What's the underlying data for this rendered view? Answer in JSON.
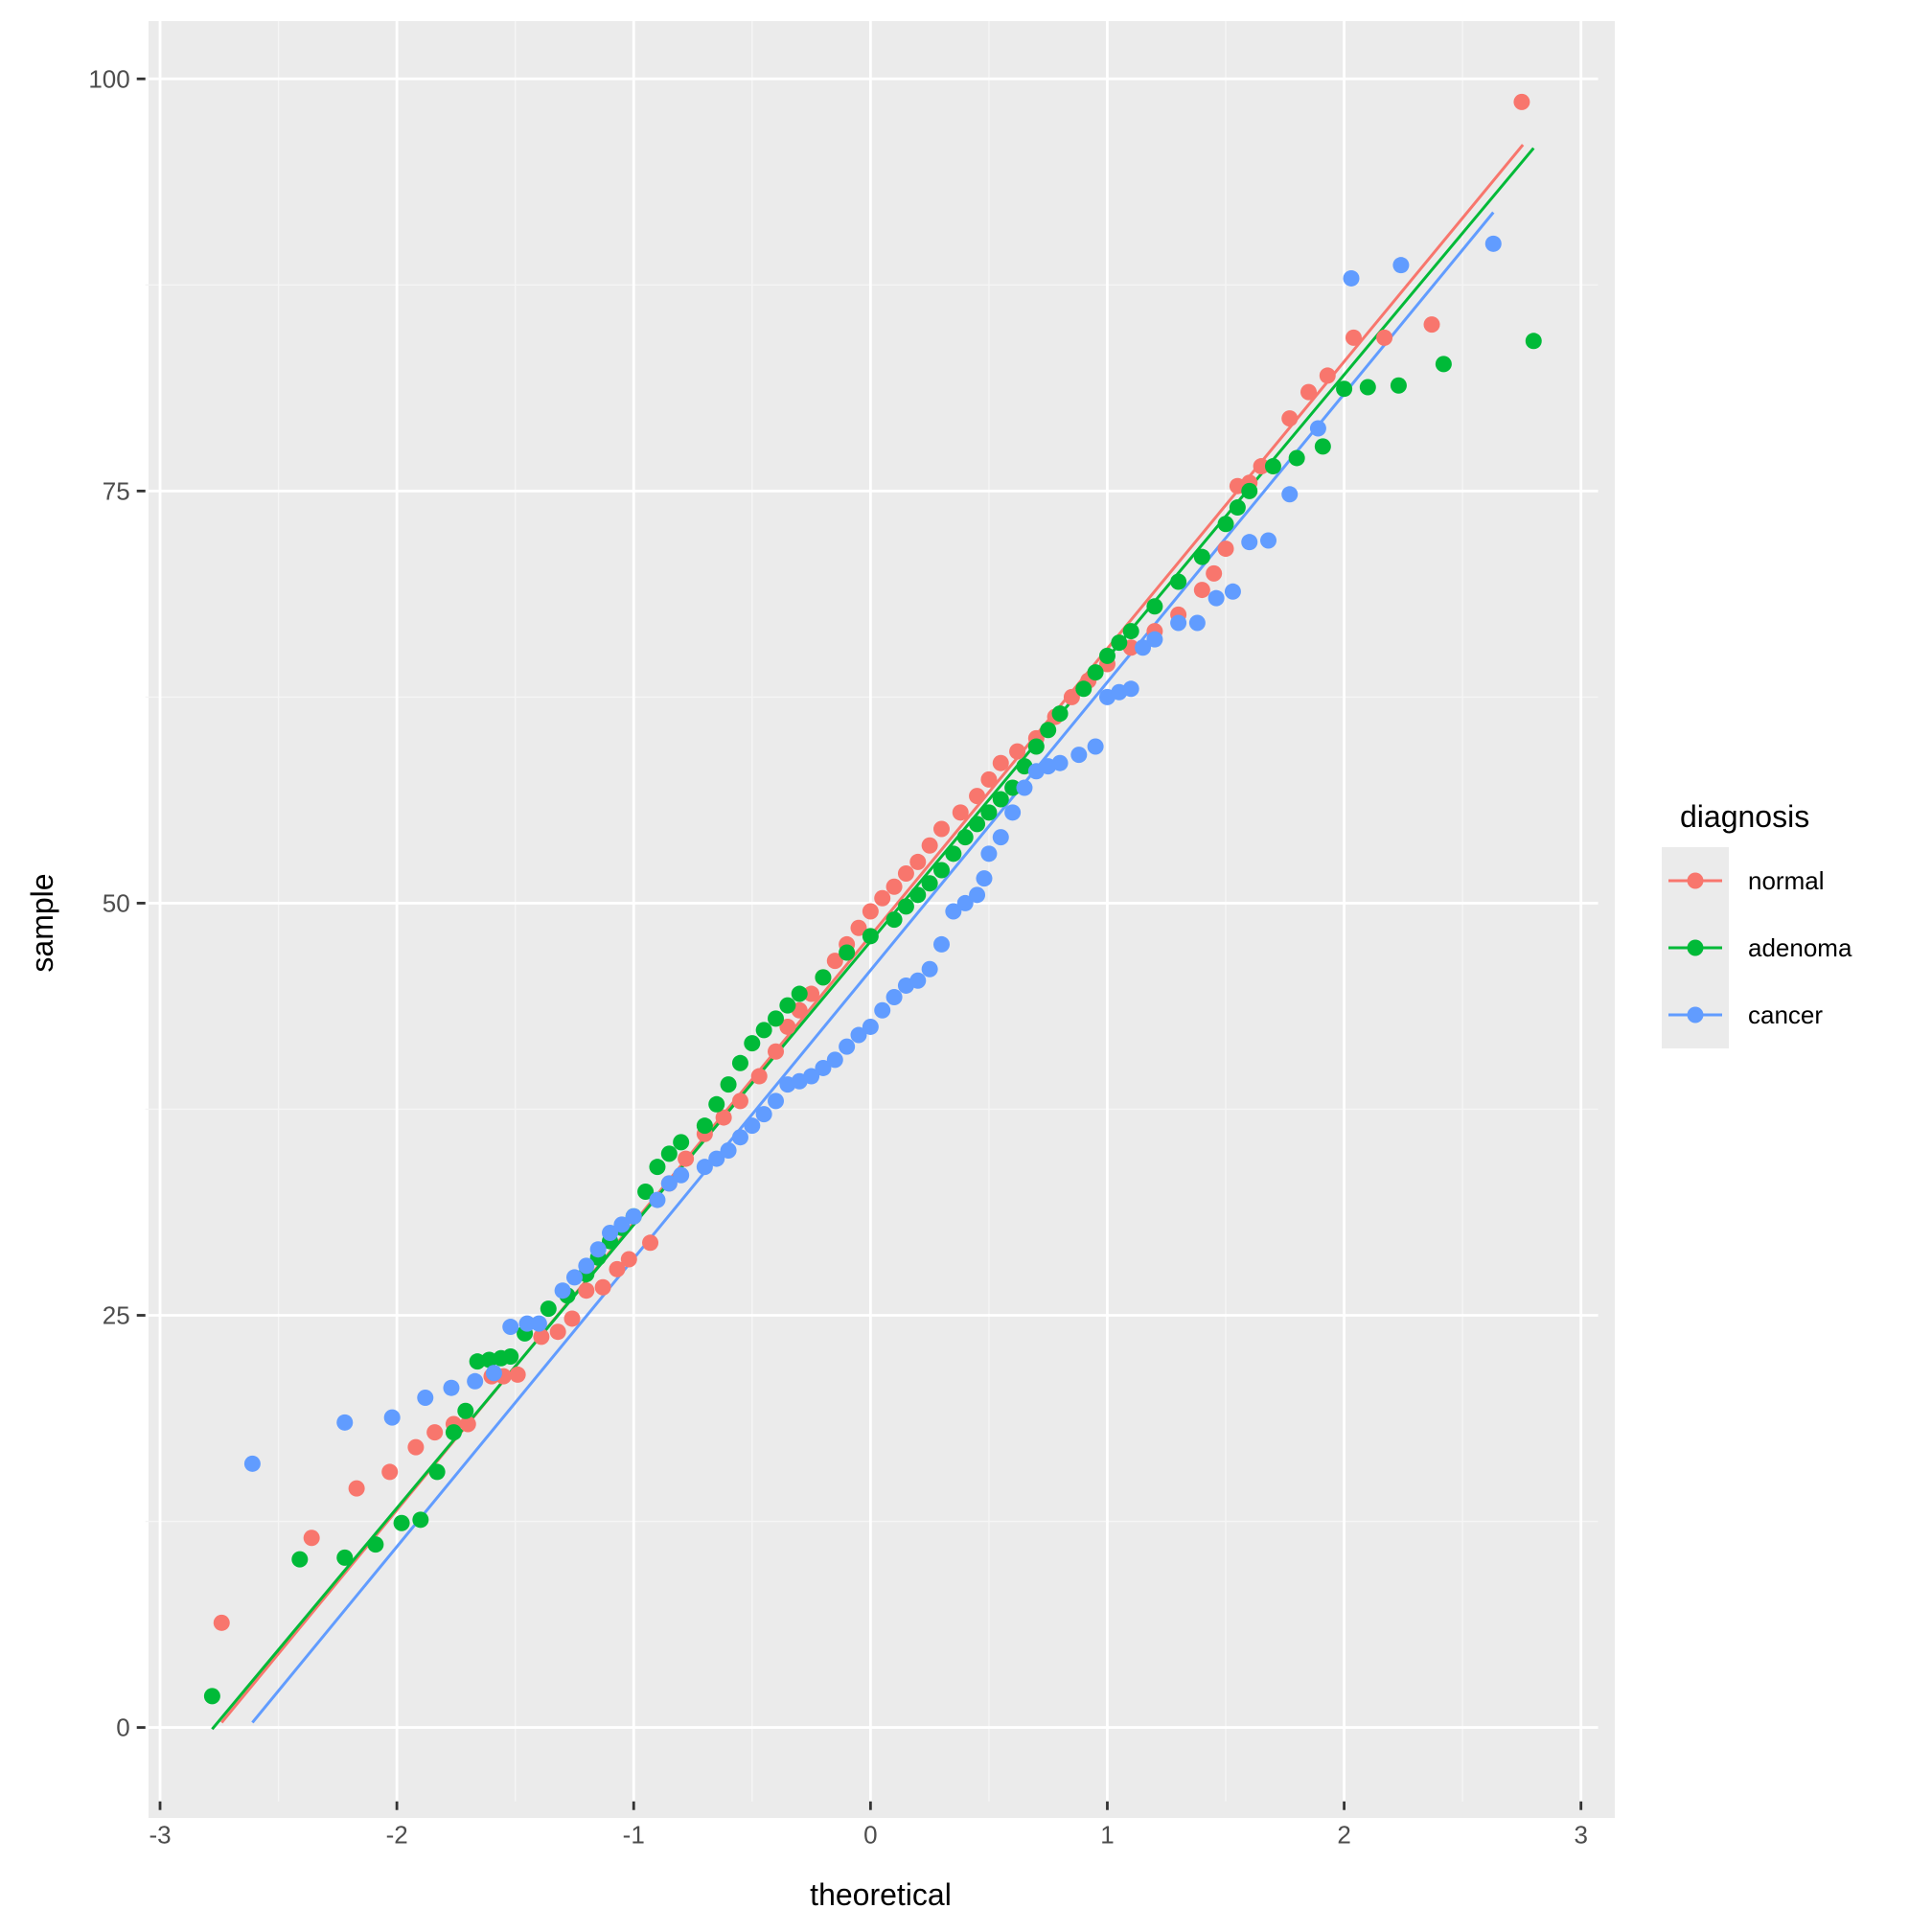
{
  "chart_data": {
    "type": "scatter",
    "subtype": "qq-plot with reference lines",
    "xlabel": "theoretical",
    "ylabel": "sample",
    "xlim": [
      -3.05,
      3.05
    ],
    "ylim": [
      -4.5,
      103.5
    ],
    "x_ticks": [
      -3,
      -2,
      -1,
      0,
      1,
      2,
      3
    ],
    "y_ticks": [
      0,
      25,
      50,
      75,
      100
    ],
    "grid": true,
    "background": "#EBEBEB",
    "legend": {
      "title": "diagnosis",
      "position": "right"
    },
    "series": [
      {
        "name": "normal",
        "color": "#F8766D",
        "line": [
          [
            -2.74,
            0.3
          ],
          [
            2.755,
            96
          ]
        ],
        "points": [
          [
            -2.74,
            6.35
          ],
          [
            -2.36,
            11.5
          ],
          [
            -2.17,
            14.5
          ],
          [
            -2.03,
            15.5
          ],
          [
            -1.92,
            17.0
          ],
          [
            -1.84,
            17.9
          ],
          [
            -1.76,
            18.4
          ],
          [
            -1.7,
            18.4
          ],
          [
            -1.6,
            21.3
          ],
          [
            -1.55,
            21.3
          ],
          [
            -1.49,
            21.4
          ],
          [
            -1.39,
            23.7
          ],
          [
            -1.32,
            24.0
          ],
          [
            -1.26,
            24.8
          ],
          [
            -1.2,
            26.5
          ],
          [
            -1.13,
            26.7
          ],
          [
            -1.07,
            27.8
          ],
          [
            -1.02,
            28.4
          ],
          [
            -0.93,
            29.4
          ],
          [
            -0.85,
            33
          ],
          [
            -0.78,
            34.5
          ],
          [
            -0.7,
            36
          ],
          [
            -0.62,
            37
          ],
          [
            -0.55,
            38
          ],
          [
            -0.47,
            39.5
          ],
          [
            -0.4,
            41
          ],
          [
            -0.35,
            42.5
          ],
          [
            -0.3,
            43.5
          ],
          [
            -0.25,
            44.5
          ],
          [
            -0.2,
            45.5
          ],
          [
            -0.15,
            46.5
          ],
          [
            -0.1,
            47.5
          ],
          [
            -0.05,
            48.5
          ],
          [
            0,
            49.5
          ],
          [
            0.05,
            50.3
          ],
          [
            0.1,
            51
          ],
          [
            0.15,
            51.8
          ],
          [
            0.2,
            52.5
          ],
          [
            0.25,
            53.5
          ],
          [
            0.3,
            54.5
          ],
          [
            0.38,
            55.5
          ],
          [
            0.45,
            56.5
          ],
          [
            0.5,
            57.5
          ],
          [
            0.55,
            58.5
          ],
          [
            0.62,
            59.2
          ],
          [
            0.7,
            60
          ],
          [
            0.78,
            61.3
          ],
          [
            0.85,
            62.5
          ],
          [
            0.92,
            63.5
          ],
          [
            1,
            64.5
          ],
          [
            1.1,
            65.5
          ],
          [
            1.2,
            66.5
          ],
          [
            1.3,
            67.5
          ],
          [
            1.4,
            69
          ],
          [
            1.45,
            70
          ],
          [
            1.5,
            71.5
          ],
          [
            1.55,
            75.3
          ],
          [
            1.6,
            75.5
          ],
          [
            1.65,
            76.5
          ],
          [
            1.77,
            79.4
          ],
          [
            1.85,
            81
          ],
          [
            1.93,
            82
          ],
          [
            2.04,
            84.3
          ],
          [
            2.17,
            84.3
          ],
          [
            2.37,
            85.1
          ],
          [
            2.75,
            98.6
          ]
        ]
      },
      {
        "name": "adenoma",
        "color": "#00BA38",
        "line": [
          [
            -2.78,
            -0.1
          ],
          [
            2.8,
            95.8
          ]
        ],
        "points": [
          [
            -2.78,
            1.9
          ],
          [
            -2.41,
            10.2
          ],
          [
            -2.22,
            10.3
          ],
          [
            -2.09,
            11.1
          ],
          [
            -1.98,
            12.4
          ],
          [
            -1.9,
            12.6
          ],
          [
            -1.83,
            15.5
          ],
          [
            -1.76,
            17.9
          ],
          [
            -1.71,
            19.2
          ],
          [
            -1.66,
            22.2
          ],
          [
            -1.61,
            22.3
          ],
          [
            -1.56,
            22.4
          ],
          [
            -1.52,
            22.5
          ],
          [
            -1.46,
            23.9
          ],
          [
            -1.36,
            25.4
          ],
          [
            -1.28,
            26.2
          ],
          [
            -1.2,
            27.5
          ],
          [
            -1.15,
            28.5
          ],
          [
            -1.1,
            29.5
          ],
          [
            -1.05,
            30.3
          ],
          [
            -1.0,
            31
          ],
          [
            -0.95,
            32.5
          ],
          [
            -0.9,
            34
          ],
          [
            -0.85,
            34.8
          ],
          [
            -0.8,
            35.5
          ],
          [
            -0.7,
            36.5
          ],
          [
            -0.65,
            37.8
          ],
          [
            -0.6,
            39
          ],
          [
            -0.55,
            40.3
          ],
          [
            -0.5,
            41.5
          ],
          [
            -0.45,
            42.3
          ],
          [
            -0.4,
            43
          ],
          [
            -0.35,
            43.8
          ],
          [
            -0.3,
            44.5
          ],
          [
            -0.2,
            45.5
          ],
          [
            -0.1,
            47
          ],
          [
            0,
            48
          ],
          [
            0.1,
            49
          ],
          [
            0.15,
            49.8
          ],
          [
            0.2,
            50.5
          ],
          [
            0.25,
            51.2
          ],
          [
            0.3,
            52
          ],
          [
            0.35,
            53
          ],
          [
            0.4,
            54
          ],
          [
            0.45,
            54.8
          ],
          [
            0.5,
            55.5
          ],
          [
            0.55,
            56.3
          ],
          [
            0.6,
            57
          ],
          [
            0.65,
            58.3
          ],
          [
            0.7,
            59.5
          ],
          [
            0.75,
            60.5
          ],
          [
            0.8,
            61.5
          ],
          [
            0.9,
            63
          ],
          [
            0.95,
            64
          ],
          [
            1,
            65
          ],
          [
            1.05,
            65.8
          ],
          [
            1.1,
            66.5
          ],
          [
            1.2,
            68
          ],
          [
            1.3,
            69.5
          ],
          [
            1.4,
            71
          ],
          [
            1.5,
            73
          ],
          [
            1.55,
            74
          ],
          [
            1.6,
            75
          ],
          [
            1.7,
            76.5
          ],
          [
            1.8,
            77
          ],
          [
            1.91,
            77.7
          ],
          [
            2.0,
            81.2
          ],
          [
            2.1,
            81.3
          ],
          [
            2.23,
            81.4
          ],
          [
            2.42,
            82.7
          ],
          [
            2.8,
            84.1
          ]
        ]
      },
      {
        "name": "cancer",
        "color": "#619CFF",
        "line": [
          [
            -2.61,
            0.3
          ],
          [
            2.63,
            91.9
          ]
        ],
        "points": [
          [
            -2.61,
            16.0
          ],
          [
            -2.22,
            18.5
          ],
          [
            -2.02,
            18.8
          ],
          [
            -1.88,
            20.0
          ],
          [
            -1.77,
            20.6
          ],
          [
            -1.67,
            21.0
          ],
          [
            -1.59,
            21.5
          ],
          [
            -1.52,
            24.3
          ],
          [
            -1.45,
            24.5
          ],
          [
            -1.4,
            24.5
          ],
          [
            -1.3,
            26.5
          ],
          [
            -1.25,
            27.3
          ],
          [
            -1.2,
            28
          ],
          [
            -1.15,
            29
          ],
          [
            -1.1,
            30
          ],
          [
            -1.05,
            30.5
          ],
          [
            -1.0,
            31
          ],
          [
            -0.9,
            32
          ],
          [
            -0.85,
            33
          ],
          [
            -0.8,
            33.5
          ],
          [
            -0.7,
            34
          ],
          [
            -0.65,
            34.5
          ],
          [
            -0.6,
            35
          ],
          [
            -0.55,
            35.8
          ],
          [
            -0.5,
            36.5
          ],
          [
            -0.45,
            37.2
          ],
          [
            -0.4,
            38
          ],
          [
            -0.35,
            39
          ],
          [
            -0.3,
            39.2
          ],
          [
            -0.25,
            39.5
          ],
          [
            -0.2,
            40
          ],
          [
            -0.15,
            40.5
          ],
          [
            -0.1,
            41.3
          ],
          [
            -0.05,
            42
          ],
          [
            0,
            42.5
          ],
          [
            0.05,
            43.5
          ],
          [
            0.1,
            44.3
          ],
          [
            0.15,
            45
          ],
          [
            0.2,
            45.3
          ],
          [
            0.25,
            46
          ],
          [
            0.3,
            47.5
          ],
          [
            0.35,
            49.5
          ],
          [
            0.4,
            50
          ],
          [
            0.45,
            50.5
          ],
          [
            0.48,
            51.5
          ],
          [
            0.5,
            53
          ],
          [
            0.55,
            54
          ],
          [
            0.6,
            55.5
          ],
          [
            0.65,
            57
          ],
          [
            0.7,
            58
          ],
          [
            0.75,
            58.3
          ],
          [
            0.8,
            58.5
          ],
          [
            0.88,
            59
          ],
          [
            0.95,
            59.5
          ],
          [
            1.0,
            62.5
          ],
          [
            1.05,
            62.8
          ],
          [
            1.1,
            63
          ],
          [
            1.15,
            65.5
          ],
          [
            1.2,
            66
          ],
          [
            1.3,
            67
          ],
          [
            1.38,
            67
          ],
          [
            1.46,
            68.5
          ],
          [
            1.53,
            68.9
          ],
          [
            1.6,
            71.9
          ],
          [
            1.68,
            72.0
          ],
          [
            1.77,
            74.8
          ],
          [
            1.89,
            78.8
          ],
          [
            2.03,
            87.9
          ],
          [
            2.24,
            88.7
          ],
          [
            2.63,
            90.0
          ]
        ]
      }
    ]
  }
}
